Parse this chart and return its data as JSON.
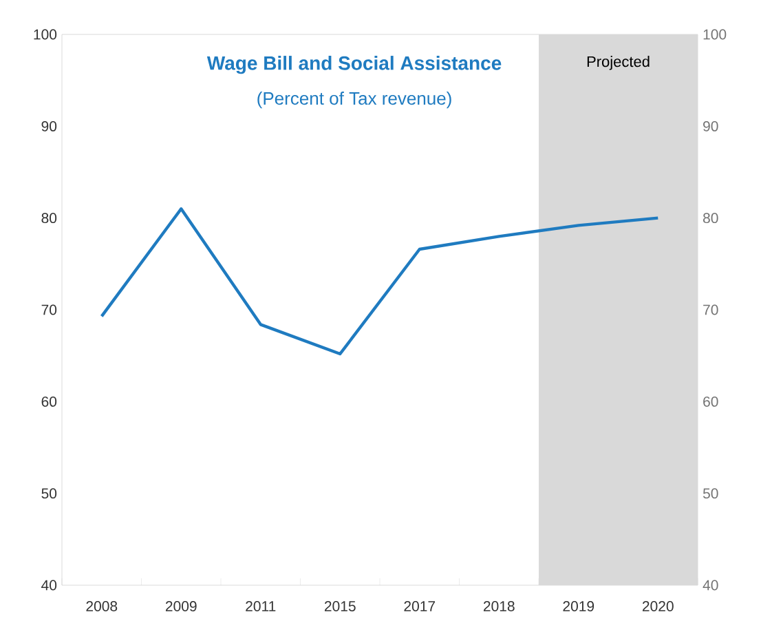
{
  "chart_data": {
    "type": "line",
    "title": "Wage Bill and Social Assistance",
    "subtitle": "(Percent of Tax revenue)",
    "categories": [
      "2008",
      "2009",
      "2011",
      "2015",
      "2017",
      "2018",
      "2019",
      "2020"
    ],
    "series": [
      {
        "color": "#1f7bc0",
        "values": [
          69.3,
          81.0,
          68.4,
          65.2,
          76.6,
          78.0,
          79.2,
          80.0
        ]
      }
    ],
    "ylim": [
      40,
      100
    ],
    "yticks": [
      40,
      50,
      60,
      70,
      80,
      90,
      100
    ],
    "y2lim": [
      40,
      100
    ],
    "y2ticks": [
      40,
      50,
      60,
      70,
      80,
      90,
      100
    ],
    "bands": [
      {
        "axis": "x",
        "from": "2019",
        "to": "2020",
        "label": "Projected",
        "color": "#d9d9d9"
      }
    ],
    "grid": false,
    "marker": "none",
    "line_style": "solid"
  }
}
